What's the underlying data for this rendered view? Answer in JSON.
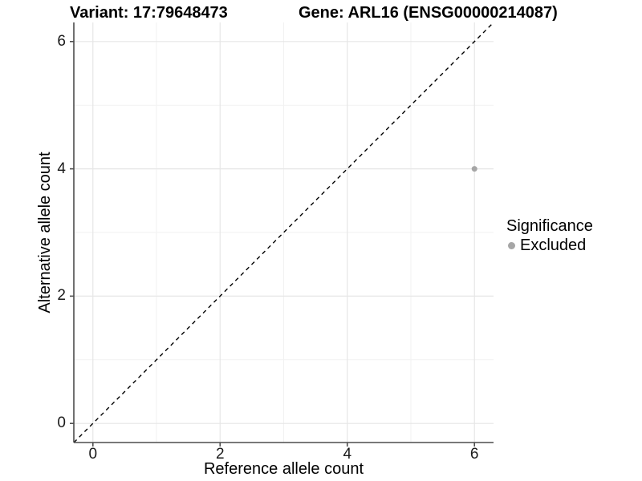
{
  "chart_data": {
    "type": "scatter",
    "titles": {
      "left": "Variant: 17:79648473",
      "right": "Gene: ARL16 (ENSG00000214087)"
    },
    "xlabel": "Reference allele count",
    "ylabel": "Alternative allele count",
    "xlim": [
      -0.3,
      6.3
    ],
    "ylim": [
      -0.3,
      6.3
    ],
    "x_ticks": [
      0,
      2,
      4,
      6
    ],
    "y_ticks": [
      0,
      2,
      4,
      6
    ],
    "x_minor_ticks": [
      1,
      3,
      5
    ],
    "y_minor_ticks": [
      1,
      3,
      5
    ],
    "grid": "on",
    "legend_position": "right",
    "points": [
      {
        "x": 6,
        "y": 4,
        "series": "Excluded",
        "color": "#a6a6a6"
      }
    ],
    "reference_line": {
      "type": "identity",
      "slope": 1,
      "intercept": 0,
      "style": "dashed",
      "color": "#000000"
    }
  },
  "legend": {
    "title": "Significance",
    "items": [
      {
        "label": "Excluded",
        "color": "#a6a6a6"
      }
    ]
  },
  "colors": {
    "background": "#ffffff",
    "axis": "#4d4d4d",
    "grid_major": "#e6e6e6",
    "grid_minor": "#f2f2f2",
    "reference_line": "#000000",
    "point": "#a6a6a6",
    "text": "#000000"
  }
}
